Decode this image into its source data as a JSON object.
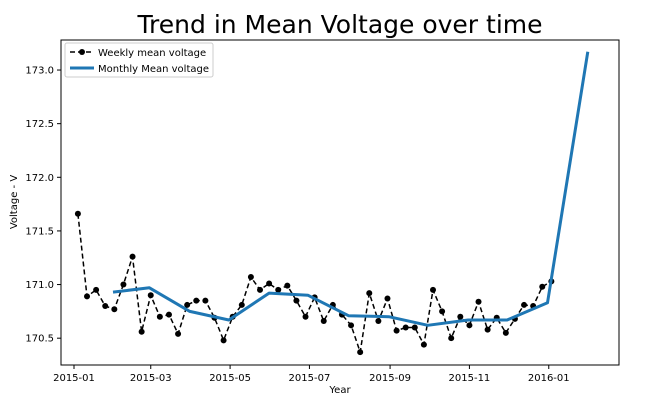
{
  "chart_data": {
    "type": "line",
    "title": "Trend in Mean Voltage over time",
    "xlabel": "Year",
    "ylabel": "Voltage -  V",
    "x_ticks": [
      "2015-01",
      "2015-03",
      "2015-05",
      "2015-07",
      "2015-09",
      "2015-11",
      "2016-01"
    ],
    "y_ticks": [
      "170.5",
      "171.0",
      "171.5",
      "172.0",
      "172.5",
      "173.0"
    ],
    "xlim": [
      "2014-12-22",
      "2016-02-24"
    ],
    "ylim": [
      170.25,
      173.28
    ],
    "grid": false,
    "legend_position": "top-left",
    "series": [
      {
        "name": "Weekly mean voltage",
        "style": "dashed-marker",
        "color": "#000000",
        "points": [
          [
            "2015-01-04",
            171.66
          ],
          [
            "2015-01-11",
            170.89
          ],
          [
            "2015-01-18",
            170.95
          ],
          [
            "2015-01-25",
            170.8
          ],
          [
            "2015-02-01",
            170.77
          ],
          [
            "2015-02-08",
            171.0
          ],
          [
            "2015-02-15",
            171.26
          ],
          [
            "2015-02-22",
            170.56
          ],
          [
            "2015-03-01",
            170.9
          ],
          [
            "2015-03-08",
            170.7
          ],
          [
            "2015-03-15",
            170.72
          ],
          [
            "2015-03-22",
            170.54
          ],
          [
            "2015-03-29",
            170.81
          ],
          [
            "2015-04-05",
            170.85
          ],
          [
            "2015-04-12",
            170.85
          ],
          [
            "2015-04-19",
            170.69
          ],
          [
            "2015-04-26",
            170.48
          ],
          [
            "2015-05-03",
            170.7
          ],
          [
            "2015-05-10",
            170.81
          ],
          [
            "2015-05-17",
            171.07
          ],
          [
            "2015-05-24",
            170.95
          ],
          [
            "2015-05-31",
            171.01
          ],
          [
            "2015-06-07",
            170.95
          ],
          [
            "2015-06-14",
            170.99
          ],
          [
            "2015-06-21",
            170.85
          ],
          [
            "2015-06-28",
            170.7
          ],
          [
            "2015-07-05",
            170.88
          ],
          [
            "2015-07-12",
            170.66
          ],
          [
            "2015-07-19",
            170.81
          ],
          [
            "2015-07-26",
            170.72
          ],
          [
            "2015-08-02",
            170.62
          ],
          [
            "2015-08-09",
            170.37
          ],
          [
            "2015-08-16",
            170.92
          ],
          [
            "2015-08-23",
            170.66
          ],
          [
            "2015-08-30",
            170.87
          ],
          [
            "2015-09-06",
            170.57
          ],
          [
            "2015-09-13",
            170.6
          ],
          [
            "2015-09-20",
            170.6
          ],
          [
            "2015-09-27",
            170.44
          ],
          [
            "2015-10-04",
            170.95
          ],
          [
            "2015-10-11",
            170.75
          ],
          [
            "2015-10-18",
            170.5
          ],
          [
            "2015-10-25",
            170.7
          ],
          [
            "2015-11-01",
            170.62
          ],
          [
            "2015-11-08",
            170.84
          ],
          [
            "2015-11-15",
            170.58
          ],
          [
            "2015-11-22",
            170.69
          ],
          [
            "2015-11-29",
            170.55
          ],
          [
            "2015-12-06",
            170.68
          ],
          [
            "2015-12-13",
            170.81
          ],
          [
            "2015-12-20",
            170.8
          ],
          [
            "2015-12-27",
            170.98
          ],
          [
            "2016-01-03",
            171.03
          ]
        ]
      },
      {
        "name": "Monthly Mean voltage",
        "style": "solid-thick",
        "color": "#1f77b4",
        "points": [
          [
            "2015-01-31",
            170.93
          ],
          [
            "2015-02-28",
            170.97
          ],
          [
            "2015-03-31",
            170.75
          ],
          [
            "2015-04-30",
            170.67
          ],
          [
            "2015-05-31",
            170.92
          ],
          [
            "2015-06-30",
            170.9
          ],
          [
            "2015-07-31",
            170.71
          ],
          [
            "2015-08-31",
            170.7
          ],
          [
            "2015-09-30",
            170.62
          ],
          [
            "2015-10-31",
            170.67
          ],
          [
            "2015-11-30",
            170.67
          ],
          [
            "2015-12-31",
            170.83
          ],
          [
            "2016-01-31",
            173.17
          ]
        ]
      }
    ]
  }
}
